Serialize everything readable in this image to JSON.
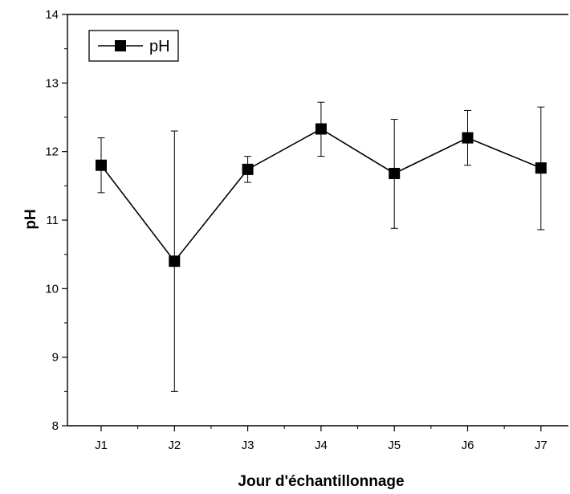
{
  "chart_data": {
    "type": "line",
    "title": "",
    "xlabel": "Jour d'échantillonnage",
    "ylabel": "pH",
    "categories": [
      "J1",
      "J2",
      "J3",
      "J4",
      "J5",
      "J6",
      "J7"
    ],
    "ylim": [
      8,
      14
    ],
    "yticks": [
      "8",
      "9",
      "10",
      "11",
      "12",
      "13",
      "14"
    ],
    "grid": false,
    "legend": "top-left",
    "marker": "square",
    "series": [
      {
        "name": "pH",
        "values": [
          11.8,
          10.4,
          11.74,
          12.33,
          11.68,
          12.2,
          11.76
        ],
        "error_low": [
          11.4,
          8.5,
          11.55,
          11.93,
          10.88,
          11.8,
          10.86
        ],
        "error_high": [
          12.2,
          12.3,
          11.93,
          12.72,
          12.47,
          12.6,
          12.65
        ]
      }
    ],
    "colors": {
      "line": "#000000",
      "marker": "#000000",
      "axis": "#000000",
      "background": "#ffffff"
    }
  }
}
